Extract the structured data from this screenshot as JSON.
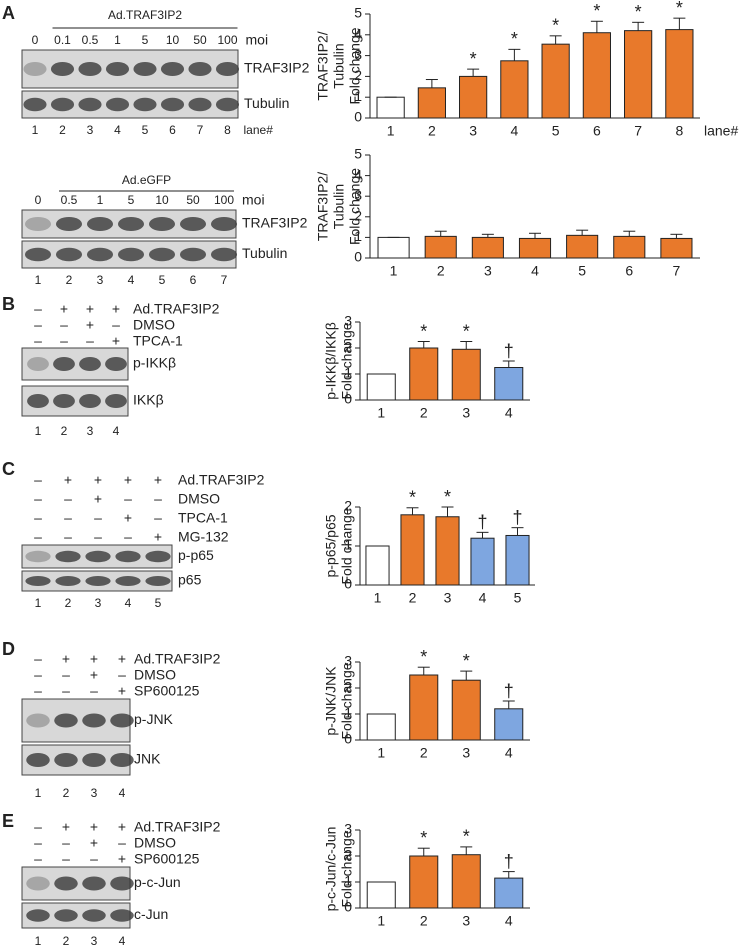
{
  "blots": [
    {
      "letter": "A",
      "header": "Ad.TRAF3IP2",
      "moi": [
        "0",
        "0.1",
        "0.5",
        "1",
        "5",
        "10",
        "50",
        "100"
      ],
      "moi_label": "moi",
      "bands": [
        "TRAF3IP2",
        "Tubulin"
      ],
      "lanes": [
        "1",
        "2",
        "3",
        "4",
        "5",
        "6",
        "7",
        "8"
      ],
      "lane_label": "lane#"
    },
    {
      "header": "Ad.eGFP",
      "moi": [
        "0",
        "0.5",
        "1",
        "5",
        "10",
        "50",
        "100"
      ],
      "moi_label": "moi",
      "bands": [
        "TRAF3IP2",
        "Tubulin"
      ],
      "lanes": [
        "1",
        "2",
        "3",
        "4",
        "5",
        "6",
        "7"
      ]
    },
    {
      "letter": "B",
      "treatments": [
        {
          "label": "Ad.TRAF3IP2",
          "signs": [
            "–",
            "+",
            "+",
            "+"
          ]
        },
        {
          "label": "DMSO",
          "signs": [
            "–",
            "–",
            "+",
            "–"
          ]
        },
        {
          "label": "TPCA-1",
          "signs": [
            "–",
            "–",
            "–",
            "+"
          ]
        }
      ],
      "bands": [
        "p-IKKβ",
        "IKKβ"
      ],
      "lanes": [
        "1",
        "2",
        "3",
        "4"
      ]
    },
    {
      "letter": "C",
      "treatments": [
        {
          "label": "Ad.TRAF3IP2",
          "signs": [
            "–",
            "+",
            "+",
            "+",
            "+"
          ]
        },
        {
          "label": "DMSO",
          "signs": [
            "–",
            "–",
            "+",
            "–",
            "–"
          ]
        },
        {
          "label": "TPCA-1",
          "signs": [
            "–",
            "–",
            "–",
            "+",
            "–"
          ]
        },
        {
          "label": "MG-132",
          "signs": [
            "–",
            "–",
            "–",
            "–",
            "+"
          ]
        }
      ],
      "bands": [
        "p-p65",
        "p65"
      ],
      "lanes": [
        "1",
        "2",
        "3",
        "4",
        "5"
      ]
    },
    {
      "letter": "D",
      "treatments": [
        {
          "label": "Ad.TRAF3IP2",
          "signs": [
            "–",
            "+",
            "+",
            "+"
          ]
        },
        {
          "label": "DMSO",
          "signs": [
            "–",
            "–",
            "+",
            "–"
          ]
        },
        {
          "label": "SP600125",
          "signs": [
            "–",
            "–",
            "–",
            "+"
          ]
        }
      ],
      "bands": [
        "p-JNK",
        "JNK"
      ],
      "lanes": [
        "1",
        "2",
        "3",
        "4"
      ]
    },
    {
      "letter": "E",
      "treatments": [
        {
          "label": "Ad.TRAF3IP2",
          "signs": [
            "–",
            "+",
            "+",
            "+"
          ]
        },
        {
          "label": "DMSO",
          "signs": [
            "–",
            "–",
            "+",
            "–"
          ]
        },
        {
          "label": "SP600125",
          "signs": [
            "–",
            "–",
            "–",
            "+"
          ]
        }
      ],
      "bands": [
        "p-c-Jun",
        "c-Jun"
      ],
      "lanes": [
        "1",
        "2",
        "3",
        "4"
      ]
    }
  ],
  "chart_data": [
    {
      "type": "bar",
      "y_label": [
        "TRAF3IP2/",
        "Tubulin",
        "Fold change"
      ],
      "x_label": "lane#",
      "categories": [
        "1",
        "2",
        "3",
        "4",
        "5",
        "6",
        "7",
        "8"
      ],
      "values": [
        1,
        1.45,
        2.0,
        2.75,
        3.55,
        4.1,
        4.2,
        4.25
      ],
      "errors": [
        0,
        0.4,
        0.35,
        0.55,
        0.4,
        0.55,
        0.4,
        0.55
      ],
      "colors": [
        "#ffffff",
        "#e8792b",
        "#e8792b",
        "#e8792b",
        "#e8792b",
        "#e8792b",
        "#e8792b",
        "#e8792b"
      ],
      "markers": [
        null,
        null,
        "*",
        "*",
        "*",
        "*",
        "*",
        "*"
      ],
      "ylim": [
        0,
        5
      ],
      "yticks": [
        0,
        1,
        2,
        3,
        4,
        5
      ]
    },
    {
      "type": "bar",
      "y_label": [
        "TRAF3IP2/",
        "Tubulin",
        "Fold change"
      ],
      "categories": [
        "1",
        "2",
        "3",
        "4",
        "5",
        "6",
        "7"
      ],
      "values": [
        1,
        1.05,
        1.0,
        0.95,
        1.1,
        1.05,
        0.95
      ],
      "errors": [
        0,
        0.25,
        0.15,
        0.25,
        0.25,
        0.25,
        0.2
      ],
      "colors": [
        "#ffffff",
        "#e8792b",
        "#e8792b",
        "#e8792b",
        "#e8792b",
        "#e8792b",
        "#e8792b"
      ],
      "ylim": [
        0,
        5
      ],
      "yticks": [
        0,
        1,
        2,
        3,
        4,
        5
      ]
    },
    {
      "type": "bar",
      "y_label": [
        "p-IKKβ/IKKβ",
        "Fold change"
      ],
      "categories": [
        "1",
        "2",
        "3",
        "4"
      ],
      "values": [
        1,
        2.0,
        1.95,
        1.25
      ],
      "errors": [
        0,
        0.25,
        0.3,
        0.25
      ],
      "colors": [
        "#ffffff",
        "#e8792b",
        "#e8792b",
        "#7ea6e0"
      ],
      "markers": [
        null,
        "*",
        "*",
        "†"
      ],
      "ylim": [
        0,
        3
      ],
      "yticks": [
        0,
        1,
        2,
        3
      ]
    },
    {
      "type": "bar",
      "y_label": [
        "p-p65/p65",
        "Fold change"
      ],
      "categories": [
        "1",
        "2",
        "3",
        "4",
        "5"
      ],
      "values": [
        1,
        1.8,
        1.75,
        1.2,
        1.27
      ],
      "errors": [
        0,
        0.18,
        0.25,
        0.15,
        0.2
      ],
      "colors": [
        "#ffffff",
        "#e8792b",
        "#e8792b",
        "#7ea6e0",
        "#7ea6e0"
      ],
      "markers": [
        null,
        "*",
        "*",
        "†",
        "†"
      ],
      "ylim": [
        0,
        2
      ],
      "yticks": [
        0,
        1,
        2
      ]
    },
    {
      "type": "bar",
      "y_label": [
        "p-JNK/JNK",
        "Fold change"
      ],
      "categories": [
        "1",
        "2",
        "3",
        "4"
      ],
      "values": [
        1,
        2.5,
        2.3,
        1.2
      ],
      "errors": [
        0,
        0.3,
        0.35,
        0.3
      ],
      "colors": [
        "#ffffff",
        "#e8792b",
        "#e8792b",
        "#7ea6e0"
      ],
      "markers": [
        null,
        "*",
        "*",
        "†"
      ],
      "ylim": [
        0,
        3
      ],
      "yticks": [
        0,
        1,
        2,
        3
      ]
    },
    {
      "type": "bar",
      "y_label": [
        "p-c-Jun/c-Jun",
        "Fold change"
      ],
      "categories": [
        "1",
        "2",
        "3",
        "4"
      ],
      "values": [
        1,
        2.0,
        2.05,
        1.15
      ],
      "errors": [
        0,
        0.3,
        0.3,
        0.25
      ],
      "colors": [
        "#ffffff",
        "#e8792b",
        "#e8792b",
        "#7ea6e0"
      ],
      "markers": [
        null,
        "*",
        "*",
        "†"
      ],
      "ylim": [
        0,
        3
      ],
      "yticks": [
        0,
        1,
        2,
        3
      ]
    }
  ]
}
